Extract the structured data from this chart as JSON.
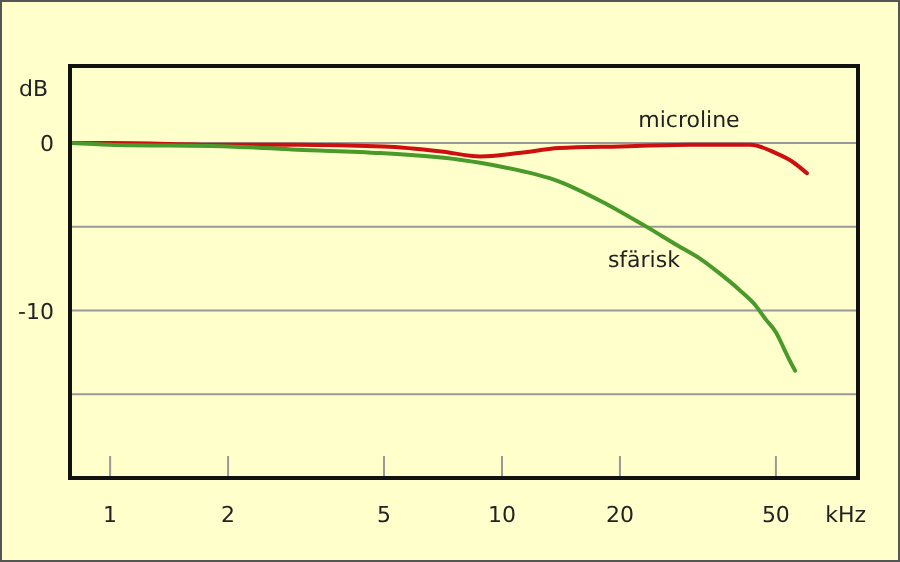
{
  "chart_data": {
    "type": "line",
    "xlabel": "kHz",
    "ylabel": "dB",
    "log": "x",
    "xlim": [
      0.79,
      81
    ],
    "ylim": [
      -20,
      4.6
    ],
    "xticks": [
      1,
      2,
      5,
      10,
      20,
      50
    ],
    "yticks": [
      0,
      {
        "value": -5,
        "label": null
      },
      -10,
      {
        "value": -15,
        "label": null
      }
    ],
    "grid": "y",
    "marker": "none",
    "line_style": "solid",
    "series": [
      {
        "name": "microline",
        "color": "#cc1010",
        "x": [
          0.79,
          1,
          2,
          3,
          5,
          7,
          8.8,
          11,
          14,
          20,
          30,
          43,
          50,
          55,
          60
        ],
        "values": [
          0,
          0,
          -0.1,
          -0.1,
          -0.2,
          -0.5,
          -0.8,
          -0.6,
          -0.3,
          -0.2,
          -0.1,
          -0.1,
          -0.6,
          -1.1,
          -1.8
        ]
      },
      {
        "name": "sfärisk",
        "color": "#4a9a2a",
        "x": [
          0.79,
          1,
          2,
          3,
          4.9,
          7.8,
          9.9,
          14,
          18,
          23,
          28,
          32,
          36,
          40.5,
          44,
          47,
          50,
          52.5,
          54,
          56
        ],
        "values": [
          0,
          -0.1,
          -0.2,
          -0.4,
          -0.6,
          -1,
          -1.4,
          -2.3,
          -3.5,
          -4.9,
          -6.1,
          -6.9,
          -7.8,
          -8.8,
          -9.6,
          -10.5,
          -11.3,
          -12.3,
          -12.9,
          -13.6
        ]
      }
    ]
  }
}
